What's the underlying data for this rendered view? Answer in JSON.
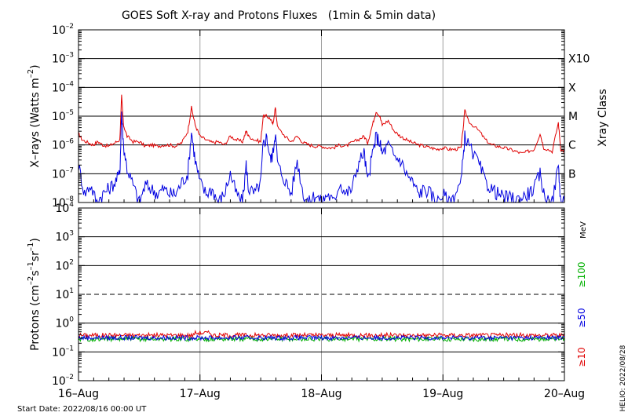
{
  "title": "GOES Soft X-ray and Protons Fluxes   (1min & 5min data)",
  "footer": {
    "start_date": "Start Date: 2022/08/16 00:00 UT",
    "helio": "HELIO: 2022/08/28"
  },
  "colors": {
    "red": "#e00000",
    "blue": "#0000e0",
    "green": "#00b000",
    "grid": "#000000",
    "vgrid": "#a0a0a0"
  },
  "chart_data": [
    {
      "type": "line",
      "panel": "xray",
      "ylabel": "X-rays (Watts m-2)",
      "ylabel_parts": {
        "main": "X–rays (Watts m",
        "exp": "–2",
        "close": ")"
      },
      "yscale": "log",
      "ylim": [
        1e-08,
        0.01
      ],
      "y_ticks": [
        {
          "base": "10",
          "exp": "–8"
        },
        {
          "base": "10",
          "exp": "–7"
        },
        {
          "base": "10",
          "exp": "–6"
        },
        {
          "base": "10",
          "exp": "–5"
        },
        {
          "base": "10",
          "exp": "–4"
        },
        {
          "base": "10",
          "exp": "–3"
        },
        {
          "base": "10",
          "exp": "–2"
        }
      ],
      "right_axis_label": "Xray Class",
      "classes": [
        {
          "label": "B",
          "level": 1e-07
        },
        {
          "label": "C",
          "level": 1e-06
        },
        {
          "label": "M",
          "level": 1e-05
        },
        {
          "label": "X",
          "level": 0.0001
        },
        {
          "label": "X10",
          "level": 0.001
        }
      ],
      "x_days": [
        0,
        1,
        2,
        3,
        4
      ],
      "x_tick_labels": [
        "16–Aug",
        "17–Aug",
        "18–Aug",
        "19–Aug",
        "20–Aug"
      ],
      "series": [
        {
          "color": "red",
          "points": [
            [
              0.0,
              2.5e-06
            ],
            [
              0.03,
              1.5e-06
            ],
            [
              0.08,
              1.2e-06
            ],
            [
              0.12,
              1e-06
            ],
            [
              0.16,
              1.3e-06
            ],
            [
              0.2,
              1e-06
            ],
            [
              0.25,
              9e-07
            ],
            [
              0.3,
              1.2e-06
            ],
            [
              0.34,
              1.5e-06
            ],
            [
              0.355,
              5e-05
            ],
            [
              0.37,
              5e-06
            ],
            [
              0.4,
              2e-06
            ],
            [
              0.45,
              1.3e-06
            ],
            [
              0.5,
              1.3e-06
            ],
            [
              0.55,
              9e-07
            ],
            [
              0.6,
              1e-06
            ],
            [
              0.65,
              9e-07
            ],
            [
              0.7,
              1e-06
            ],
            [
              0.75,
              1e-06
            ],
            [
              0.8,
              9e-07
            ],
            [
              0.85,
              1.2e-06
            ],
            [
              0.9,
              3e-06
            ],
            [
              0.93,
              2e-05
            ],
            [
              0.96,
              5e-06
            ],
            [
              1.0,
              2e-06
            ],
            [
              1.05,
              1.5e-06
            ],
            [
              1.1,
              1.2e-06
            ],
            [
              1.15,
              1.3e-06
            ],
            [
              1.2,
              1e-06
            ],
            [
              1.25,
              2e-06
            ],
            [
              1.3,
              1.5e-06
            ],
            [
              1.35,
              1.3e-06
            ],
            [
              1.38,
              3e-06
            ],
            [
              1.4,
              2e-06
            ],
            [
              1.45,
              1.5e-06
            ],
            [
              1.5,
              1.3e-06
            ],
            [
              1.52,
              1e-05
            ],
            [
              1.55,
              1e-05
            ],
            [
              1.58,
              8e-06
            ],
            [
              1.6,
              5e-06
            ],
            [
              1.62,
              2e-05
            ],
            [
              1.64,
              4e-06
            ],
            [
              1.7,
              2e-06
            ],
            [
              1.75,
              1.3e-06
            ],
            [
              1.8,
              2e-06
            ],
            [
              1.85,
              1.2e-06
            ],
            [
              1.9,
              1e-06
            ],
            [
              1.95,
              9e-07
            ],
            [
              2.0,
              9e-07
            ],
            [
              2.05,
              8e-07
            ],
            [
              2.1,
              8e-07
            ],
            [
              2.15,
              1e-06
            ],
            [
              2.2,
              9e-07
            ],
            [
              2.25,
              1.2e-06
            ],
            [
              2.3,
              1.5e-06
            ],
            [
              2.35,
              2e-06
            ],
            [
              2.38,
              1.2e-06
            ],
            [
              2.42,
              5e-06
            ],
            [
              2.45,
              1.5e-05
            ],
            [
              2.48,
              1e-05
            ],
            [
              2.5,
              5e-06
            ],
            [
              2.55,
              7e-06
            ],
            [
              2.6,
              3e-06
            ],
            [
              2.65,
              2e-06
            ],
            [
              2.7,
              1.5e-06
            ],
            [
              2.75,
              1.2e-06
            ],
            [
              2.8,
              1e-06
            ],
            [
              2.85,
              9e-07
            ],
            [
              2.9,
              8e-07
            ],
            [
              2.95,
              7e-07
            ],
            [
              3.0,
              8e-07
            ],
            [
              3.05,
              7e-07
            ],
            [
              3.1,
              7e-07
            ],
            [
              3.15,
              8e-07
            ],
            [
              3.18,
              1.5e-05
            ],
            [
              3.22,
              6e-06
            ],
            [
              3.3,
              3e-06
            ],
            [
              3.35,
              1.5e-06
            ],
            [
              3.4,
              1e-06
            ],
            [
              3.45,
              9e-07
            ],
            [
              3.5,
              8e-07
            ],
            [
              3.55,
              7e-07
            ],
            [
              3.6,
              6e-07
            ],
            [
              3.65,
              5e-07
            ],
            [
              3.7,
              6e-07
            ],
            [
              3.75,
              7e-07
            ],
            [
              3.8,
              2.5e-06
            ],
            [
              3.83,
              8e-07
            ],
            [
              3.9,
              6e-07
            ],
            [
              3.95,
              6e-06
            ],
            [
              3.97,
              7e-07
            ],
            [
              4.0,
              6e-07
            ]
          ]
        },
        {
          "color": "blue",
          "points": [
            [
              0.0,
              2e-07
            ],
            [
              0.05,
              2e-08
            ],
            [
              0.1,
              4e-08
            ],
            [
              0.15,
              1e-08
            ],
            [
              0.2,
              2e-08
            ],
            [
              0.25,
              3e-08
            ],
            [
              0.3,
              5e-08
            ],
            [
              0.34,
              1e-07
            ],
            [
              0.355,
              1.5e-05
            ],
            [
              0.37,
              1e-06
            ],
            [
              0.4,
              1.5e-07
            ],
            [
              0.45,
              4e-08
            ],
            [
              0.5,
              1e-08
            ],
            [
              0.55,
              4e-08
            ],
            [
              0.6,
              3e-08
            ],
            [
              0.65,
              2e-08
            ],
            [
              0.7,
              3e-08
            ],
            [
              0.75,
              2e-08
            ],
            [
              0.8,
              2e-08
            ],
            [
              0.85,
              5e-08
            ],
            [
              0.9,
              1e-07
            ],
            [
              0.93,
              3e-06
            ],
            [
              0.96,
              3e-07
            ],
            [
              1.0,
              5e-08
            ],
            [
              1.05,
              2e-08
            ],
            [
              1.1,
              3e-08
            ],
            [
              1.15,
              1e-08
            ],
            [
              1.2,
              2e-08
            ],
            [
              1.25,
              1e-07
            ],
            [
              1.3,
              2e-08
            ],
            [
              1.35,
              1e-08
            ],
            [
              1.38,
              2e-07
            ],
            [
              1.4,
              3e-08
            ],
            [
              1.45,
              2e-08
            ],
            [
              1.5,
              5e-08
            ],
            [
              1.52,
              1e-06
            ],
            [
              1.55,
              2e-06
            ],
            [
              1.58,
              3e-07
            ],
            [
              1.6,
              5e-07
            ],
            [
              1.62,
              3e-06
            ],
            [
              1.64,
              2e-07
            ],
            [
              1.7,
              6e-08
            ],
            [
              1.75,
              2e-08
            ],
            [
              1.8,
              3e-07
            ],
            [
              1.85,
              2e-08
            ],
            [
              1.9,
              1e-08
            ],
            [
              1.95,
              2e-08
            ],
            [
              2.0,
              1e-08
            ],
            [
              2.05,
              2e-08
            ],
            [
              2.1,
              1e-08
            ],
            [
              2.15,
              5e-08
            ],
            [
              2.2,
              2e-08
            ],
            [
              2.25,
              3e-08
            ],
            [
              2.3,
              2e-07
            ],
            [
              2.35,
              6e-07
            ],
            [
              2.38,
              5e-08
            ],
            [
              2.42,
              5e-07
            ],
            [
              2.45,
              2e-06
            ],
            [
              2.48,
              1.2e-06
            ],
            [
              2.5,
              5e-07
            ],
            [
              2.55,
              1e-06
            ],
            [
              2.6,
              4e-07
            ],
            [
              2.65,
              3e-07
            ],
            [
              2.7,
              1e-07
            ],
            [
              2.75,
              5e-08
            ],
            [
              2.8,
              2e-08
            ],
            [
              2.85,
              3e-08
            ],
            [
              2.9,
              2e-08
            ],
            [
              2.95,
              1e-08
            ],
            [
              3.0,
              2e-08
            ],
            [
              3.05,
              1e-08
            ],
            [
              3.1,
              2e-08
            ],
            [
              3.15,
              5e-08
            ],
            [
              3.18,
              2e-06
            ],
            [
              3.22,
              8e-07
            ],
            [
              3.3,
              2e-07
            ],
            [
              3.35,
              5e-08
            ],
            [
              3.4,
              3e-08
            ],
            [
              3.45,
              2e-08
            ],
            [
              3.5,
              1.5e-08
            ],
            [
              3.55,
              1.5e-08
            ],
            [
              3.6,
              1.2e-08
            ],
            [
              3.65,
              1.5e-08
            ],
            [
              3.7,
              2e-08
            ],
            [
              3.75,
              3e-08
            ],
            [
              3.8,
              1e-07
            ],
            [
              3.83,
              2e-08
            ],
            [
              3.9,
              1e-08
            ],
            [
              3.95,
              2e-07
            ],
            [
              3.97,
              1e-08
            ],
            [
              4.0,
              1e-08
            ]
          ]
        }
      ]
    },
    {
      "type": "line",
      "panel": "protons",
      "ylabel": "Protons (cm-2s-1sr-1)",
      "ylabel_parts": {
        "a": "Protons (cm",
        "e1": "–2",
        "b": "s",
        "e2": "–1",
        "c": "sr",
        "e3": "–1",
        "d": ")"
      },
      "yscale": "log",
      "ylim": [
        0.01,
        10000
      ],
      "y_ticks": [
        {
          "base": "10",
          "exp": "–2"
        },
        {
          "base": "10",
          "exp": "–1"
        },
        {
          "base": "10",
          "exp": "0"
        },
        {
          "base": "10",
          "exp": "1"
        },
        {
          "base": "10",
          "exp": "2"
        },
        {
          "base": "10",
          "exp": "3"
        },
        {
          "base": "10",
          "exp": "4"
        }
      ],
      "threshold": 10,
      "unit": "MeV",
      "energy_labels": [
        {
          "label": "≥100",
          "color": "green"
        },
        {
          "label": "≥50",
          "color": "blue"
        },
        {
          "label": "≥10",
          "color": "red"
        }
      ],
      "x_days": [
        0,
        1,
        2,
        3,
        4
      ],
      "x_tick_labels": [
        "16–Aug",
        "17–Aug",
        "18–Aug",
        "19–Aug",
        "20–Aug"
      ],
      "series": [
        {
          "color": "red",
          "level": 0.38
        },
        {
          "color": "green",
          "level": 0.28
        },
        {
          "color": "blue",
          "level": 0.31
        }
      ]
    }
  ]
}
